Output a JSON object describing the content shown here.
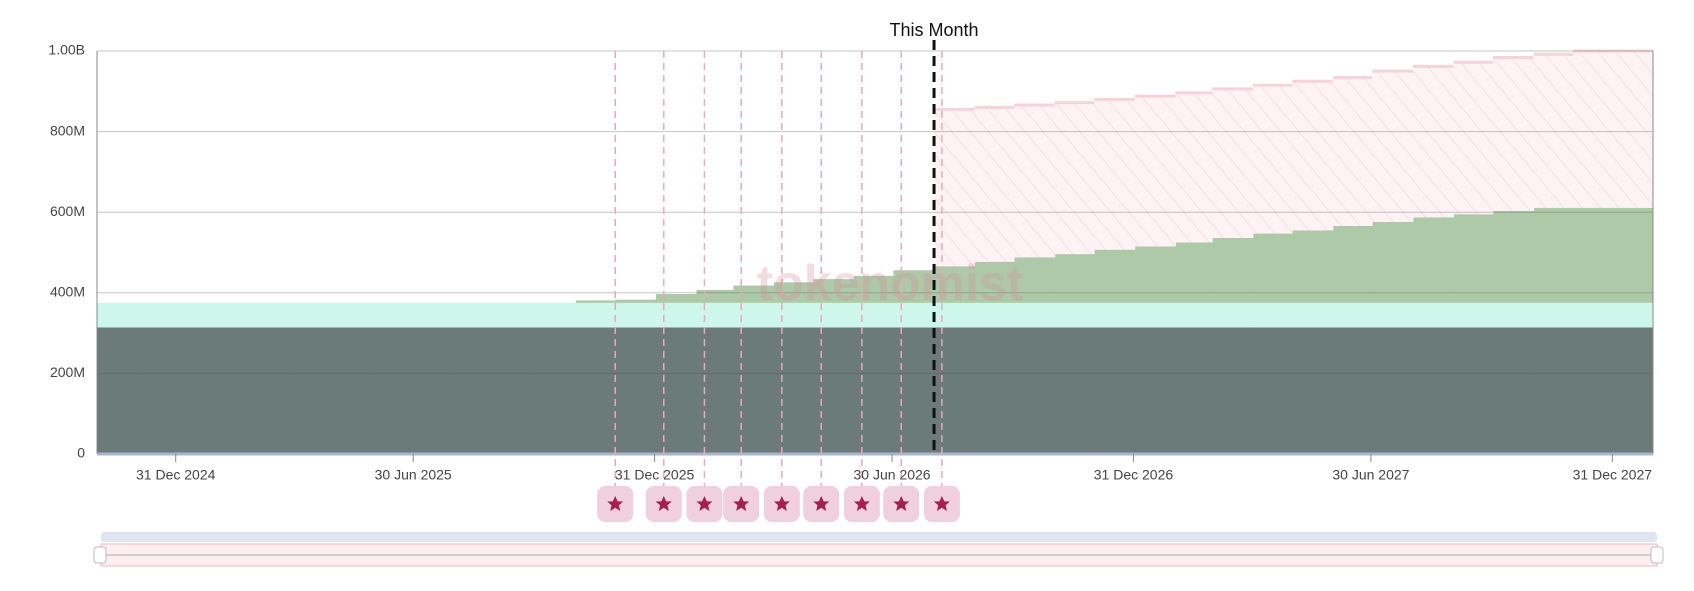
{
  "chart_data": {
    "type": "area",
    "stacked": true,
    "title": "This Month",
    "current_month": "2026-08-01",
    "watermark": "tokenomist",
    "x": [
      "2024-11-01",
      "2024-12-01",
      "2025-01-01",
      "2025-02-01",
      "2025-03-01",
      "2025-04-01",
      "2025-05-01",
      "2025-06-01",
      "2025-07-01",
      "2025-08-01",
      "2025-09-01",
      "2025-10-01",
      "2025-11-01",
      "2025-12-01",
      "2026-01-01",
      "2026-02-01",
      "2026-03-01",
      "2026-04-01",
      "2026-05-01",
      "2026-06-01",
      "2026-07-01",
      "2026-08-01",
      "2026-09-01",
      "2026-10-01",
      "2026-11-01",
      "2026-12-01",
      "2027-01-01",
      "2027-02-01",
      "2027-03-01",
      "2027-04-01",
      "2027-05-01",
      "2027-06-01",
      "2027-07-01",
      "2027-08-01",
      "2027-09-01",
      "2027-10-01",
      "2027-11-01",
      "2027-12-01",
      "2028-01-01"
    ],
    "series": [
      {
        "color": "#6b7b77",
        "values": [
          314000000.0,
          314000000.0,
          314000000.0,
          314000000.0,
          314000000.0,
          314000000.0,
          314000000.0,
          314000000.0,
          314000000.0,
          314000000.0,
          314000000.0,
          314000000.0,
          314000000.0,
          314000000.0,
          314000000.0,
          314000000.0,
          314000000.0,
          314000000.0,
          314000000.0,
          314000000.0,
          314000000.0,
          314000000.0,
          314000000.0,
          314000000.0,
          314000000.0,
          314000000.0,
          314000000.0,
          314000000.0,
          314000000.0,
          314000000.0,
          314000000.0,
          314000000.0,
          314000000.0,
          314000000.0,
          314000000.0,
          314000000.0,
          314000000.0,
          314000000.0,
          314000000.0
        ]
      },
      {
        "color": "#ccf7ea",
        "values": [
          61000000.0,
          61000000.0,
          61000000.0,
          61000000.0,
          61000000.0,
          61000000.0,
          61000000.0,
          61000000.0,
          61000000.0,
          61000000.0,
          61000000.0,
          61000000.0,
          61000000.0,
          61000000.0,
          61000000.0,
          61000000.0,
          61000000.0,
          61000000.0,
          61000000.0,
          61000000.0,
          61000000.0,
          61000000.0,
          61000000.0,
          61000000.0,
          61000000.0,
          61000000.0,
          61000000.0,
          61000000.0,
          61000000.0,
          61000000.0,
          61000000.0,
          61000000.0,
          61000000.0,
          61000000.0,
          61000000.0,
          61000000.0,
          61000000.0,
          61000000.0,
          61000000.0
        ]
      },
      {
        "color": "#adc9a8",
        "values": [
          null,
          null,
          null,
          null,
          null,
          null,
          null,
          null,
          null,
          null,
          null,
          null,
          6000000.0,
          8000000.0,
          22000000.0,
          32000000.0,
          43000000.0,
          51000000.0,
          59000000.0,
          67000000.0,
          81000000.0,
          91000000.0,
          102000000.0,
          113000000.0,
          121000000.0,
          132000000.0,
          140000000.0,
          150000000.0,
          161000000.0,
          172000000.0,
          180000000.0,
          191000000.0,
          201000000.0,
          212000000.0,
          220000000.0,
          228000000.0,
          236000000.0,
          236000000.0,
          236000000.0
        ]
      },
      {
        "color": "#f6d3db",
        "values": [
          null,
          null,
          null,
          null,
          null,
          null,
          null,
          null,
          null,
          null,
          null,
          null,
          null,
          null,
          null,
          null,
          null,
          null,
          null,
          null,
          null,
          389000000.0,
          383000000.0,
          378000000.0,
          376000000.0,
          373000000.0,
          373000000.0,
          371000000.0,
          370000000.0,
          368000000.0,
          370000000.0,
          368000000.0,
          374000000.0,
          375000000.0,
          377000000.0,
          381000000.0,
          381000000.0,
          389000000.0,
          389000000.0
        ]
      }
    ],
    "events": [
      "2025-12-01",
      "2026-01-07",
      "2026-02-07",
      "2026-03-07",
      "2026-04-07",
      "2026-05-07",
      "2026-06-07",
      "2026-07-07",
      "2026-08-07"
    ],
    "xlim": [
      "2024-11-01",
      "2028-01-31"
    ],
    "xticks": [
      {
        "value": "2024-12-31",
        "label": "31 Dec 2024"
      },
      {
        "value": "2025-06-30",
        "label": "30 Jun 2025"
      },
      {
        "value": "2025-12-31",
        "label": "31 Dec 2025"
      },
      {
        "value": "2026-06-30",
        "label": "30 Jun 2026"
      },
      {
        "value": "2026-12-31",
        "label": "31 Dec 2026"
      },
      {
        "value": "2027-06-30",
        "label": "30 Jun 2027"
      },
      {
        "value": "2027-12-31",
        "label": "31 Dec 2027"
      }
    ],
    "ylim": [
      0,
      1000000000.0
    ],
    "yticks": [
      0,
      {
        "value": 200000000.0,
        "label": "200M"
      },
      {
        "value": 400000000.0,
        "label": "400M"
      },
      {
        "value": 600000000.0,
        "label": "600M"
      },
      {
        "value": 800000000.0,
        "label": "800M"
      },
      {
        "value": 1000000000.0,
        "label": "1.00B"
      }
    ],
    "grid": true
  }
}
